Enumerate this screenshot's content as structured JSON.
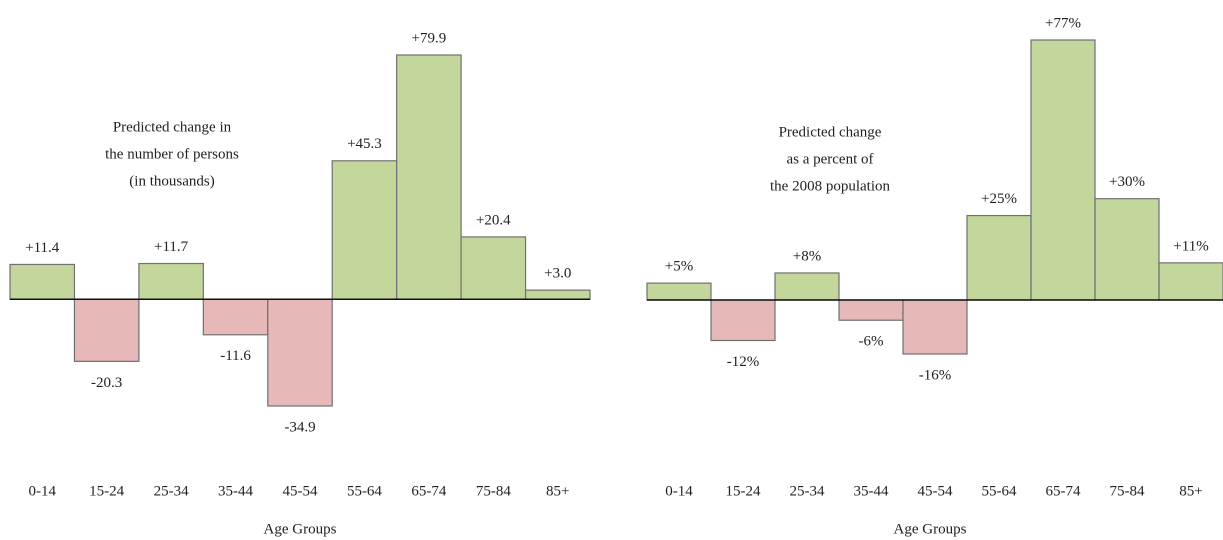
{
  "chart_data": [
    {
      "type": "bar",
      "annotation": [
        "Predicted change in",
        "the number of persons",
        "(in thousands)"
      ],
      "x_label": "Age Groups",
      "categories": [
        "0-14",
        "15-24",
        "25-34",
        "35-44",
        "45-54",
        "55-64",
        "65-74",
        "75-84",
        "85+"
      ],
      "values": [
        11.4,
        -20.3,
        11.7,
        -11.6,
        -34.9,
        45.3,
        79.9,
        20.4,
        3.0
      ],
      "value_labels": [
        "+11.4",
        "-20.3",
        "+11.7",
        "-11.6",
        "-34.9",
        "+45.3",
        "+79.9",
        "+20.4",
        "+3.0"
      ],
      "positive_color": "#c3d69b",
      "negative_color": "#e6b9b8"
    },
    {
      "type": "bar",
      "annotation": [
        "Predicted change",
        "as a percent of",
        "the 2008 population"
      ],
      "x_label": "Age Groups",
      "categories": [
        "0-14",
        "15-24",
        "25-34",
        "35-44",
        "45-54",
        "55-64",
        "65-74",
        "75-84",
        "85+"
      ],
      "values": [
        5,
        -12,
        8,
        -6,
        -16,
        25,
        77,
        30,
        11
      ],
      "value_labels": [
        "+5%",
        "-12%",
        "+8%",
        "-6%",
        "-16%",
        "+25%",
        "+77%",
        "+30%",
        "+11%"
      ],
      "positive_color": "#c3d69b",
      "negative_color": "#e6b9b8"
    }
  ]
}
